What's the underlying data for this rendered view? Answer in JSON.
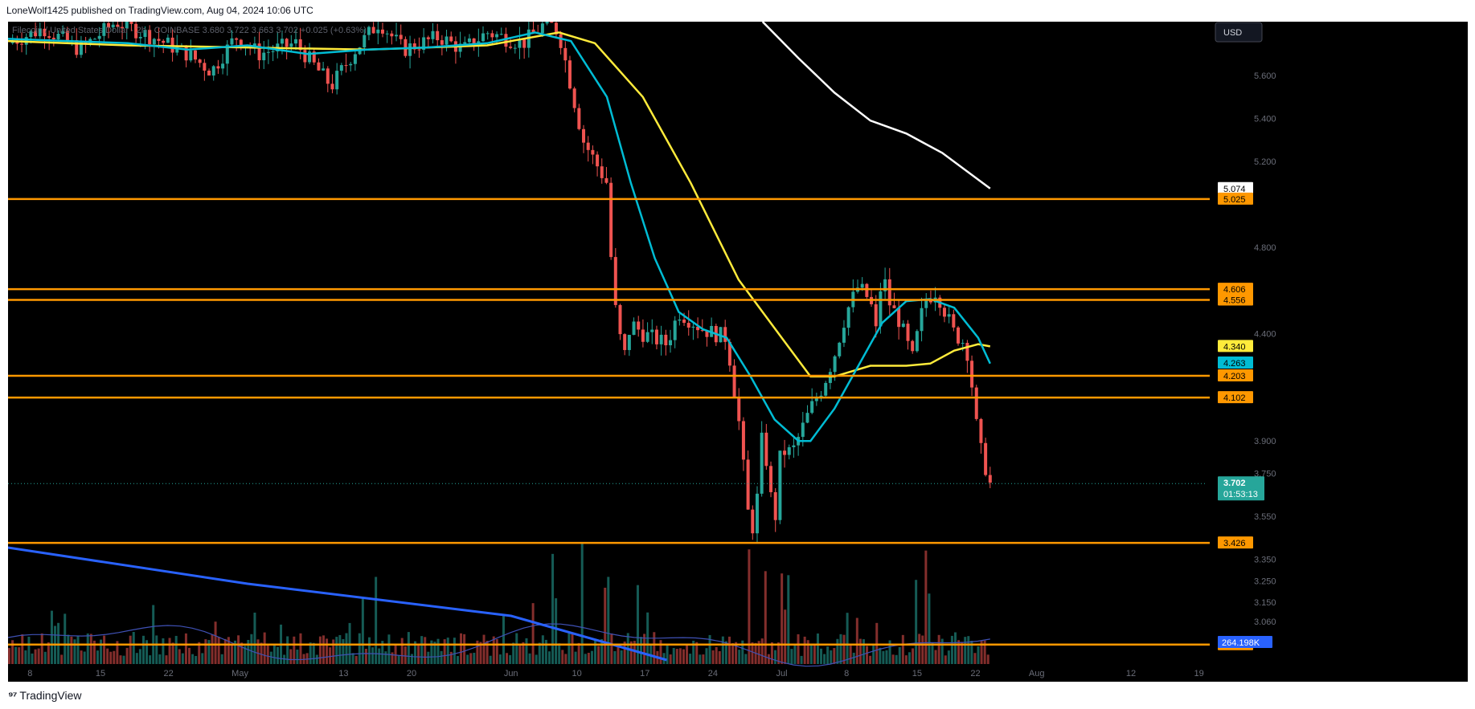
{
  "header": {
    "published": "LoneWolf1425 published on TradingView.com, Aug 04, 2024 10:06 UTC"
  },
  "footer": {
    "brand": "TradingView"
  },
  "toolbar": {
    "currency": "USD"
  },
  "colors": {
    "background": "#000000",
    "up": "#26a69a",
    "down": "#ef5350",
    "hline": "#ff9800",
    "ema_fast": "#00bcd4",
    "ema_slow": "#ffeb3b",
    "ema_long": "#ffffff",
    "vol_ma_fast": "#3f51b5",
    "vol_ma_slow": "#2962ff"
  },
  "chart_data": {
    "type": "candlestick",
    "symbol_line": {
      "name": "Filecoin / United States Dollar · 2h · COINBASE",
      "values": [
        "3.680",
        "3.722",
        "3.663",
        "3.702",
        "+0.025 (+0.63%)"
      ]
    },
    "ylim": [
      2.9,
      5.85
    ],
    "price_ticks": [
      "5.600",
      "5.400",
      "5.200",
      "4.800",
      "4.400",
      "3.900",
      "3.750",
      "3.550",
      "3.350",
      "3.250",
      "3.150",
      "3.060"
    ],
    "x_ticks": [
      "8",
      "15",
      "22",
      "May",
      "13",
      "20",
      "Jun",
      "10",
      "17",
      "24",
      "Jul",
      "8",
      "15",
      "22",
      "Aug",
      "12",
      "19"
    ],
    "horizontal_levels": [
      5.025,
      4.606,
      4.556,
      4.203,
      4.102,
      3.426,
      2.953
    ],
    "price_labels": [
      {
        "text": "5.074",
        "value": 5.074,
        "style": "white"
      },
      {
        "text": "5.025",
        "value": 5.025,
        "style": "orange"
      },
      {
        "text": "4.606",
        "value": 4.606,
        "style": "orange"
      },
      {
        "text": "4.556",
        "value": 4.556,
        "style": "orange"
      },
      {
        "text": "4.340",
        "value": 4.34,
        "style": "yellow"
      },
      {
        "text": "4.263",
        "value": 4.263,
        "style": "cyan"
      },
      {
        "text": "4.203",
        "value": 4.203,
        "style": "orange"
      },
      {
        "text": "4.102",
        "value": 4.102,
        "style": "orange"
      },
      {
        "text": "3.426",
        "value": 3.426,
        "style": "orange"
      },
      {
        "text": "2.953",
        "value": 2.953,
        "style": "orange"
      }
    ],
    "last_price": {
      "value": 3.702,
      "text": "3.702",
      "countdown": "01:53:13"
    },
    "volume_label": "264.198K",
    "price_path": [
      [
        0,
        5.75
      ],
      [
        0.03,
        5.82
      ],
      [
        0.06,
        5.72
      ],
      [
        0.09,
        5.85
      ],
      [
        0.12,
        5.78
      ],
      [
        0.15,
        5.7
      ],
      [
        0.17,
        5.62
      ],
      [
        0.19,
        5.78
      ],
      [
        0.21,
        5.7
      ],
      [
        0.24,
        5.75
      ],
      [
        0.27,
        5.55
      ],
      [
        0.29,
        5.72
      ],
      [
        0.31,
        5.85
      ],
      [
        0.33,
        5.72
      ],
      [
        0.36,
        5.78
      ],
      [
        0.38,
        5.72
      ],
      [
        0.4,
        5.8
      ],
      [
        0.43,
        5.75
      ],
      [
        0.45,
        5.85
      ],
      [
        0.46,
        5.8
      ],
      [
        0.47,
        5.55
      ],
      [
        0.48,
        5.3
      ],
      [
        0.5,
        5.1
      ],
      [
        0.505,
        4.6
      ],
      [
        0.51,
        4.4
      ],
      [
        0.515,
        4.3
      ],
      [
        0.52,
        4.45
      ],
      [
        0.53,
        4.4
      ],
      [
        0.55,
        4.35
      ],
      [
        0.56,
        4.5
      ],
      [
        0.58,
        4.42
      ],
      [
        0.6,
        4.38
      ],
      [
        0.61,
        4.0
      ],
      [
        0.62,
        3.45
      ],
      [
        0.625,
        3.6
      ],
      [
        0.63,
        3.95
      ],
      [
        0.64,
        3.5
      ],
      [
        0.645,
        3.85
      ],
      [
        0.655,
        3.85
      ],
      [
        0.67,
        4.05
      ],
      [
        0.68,
        4.15
      ],
      [
        0.69,
        4.3
      ],
      [
        0.7,
        4.5
      ],
      [
        0.71,
        4.62
      ],
      [
        0.72,
        4.55
      ],
      [
        0.725,
        4.4
      ],
      [
        0.73,
        4.7
      ],
      [
        0.735,
        4.55
      ],
      [
        0.745,
        4.45
      ],
      [
        0.755,
        4.28
      ],
      [
        0.765,
        4.55
      ],
      [
        0.775,
        4.6
      ],
      [
        0.79,
        4.4
      ],
      [
        0.8,
        4.35
      ],
      [
        0.805,
        4.15
      ],
      [
        0.81,
        3.9
      ],
      [
        0.815,
        3.8
      ],
      [
        0.82,
        3.7
      ]
    ],
    "ema_fast": [
      [
        0,
        5.77
      ],
      [
        0.05,
        5.76
      ],
      [
        0.1,
        5.75
      ],
      [
        0.15,
        5.72
      ],
      [
        0.2,
        5.74
      ],
      [
        0.25,
        5.7
      ],
      [
        0.3,
        5.72
      ],
      [
        0.35,
        5.73
      ],
      [
        0.4,
        5.75
      ],
      [
        0.44,
        5.8
      ],
      [
        0.47,
        5.76
      ],
      [
        0.5,
        5.5
      ],
      [
        0.52,
        5.1
      ],
      [
        0.54,
        4.75
      ],
      [
        0.56,
        4.5
      ],
      [
        0.58,
        4.42
      ],
      [
        0.6,
        4.38
      ],
      [
        0.62,
        4.2
      ],
      [
        0.64,
        4.0
      ],
      [
        0.66,
        3.9
      ],
      [
        0.67,
        3.9
      ],
      [
        0.69,
        4.05
      ],
      [
        0.71,
        4.25
      ],
      [
        0.73,
        4.45
      ],
      [
        0.75,
        4.55
      ],
      [
        0.77,
        4.56
      ],
      [
        0.79,
        4.52
      ],
      [
        0.81,
        4.38
      ],
      [
        0.82,
        4.26
      ]
    ],
    "ema_slow": [
      [
        0,
        5.76
      ],
      [
        0.1,
        5.74
      ],
      [
        0.2,
        5.73
      ],
      [
        0.3,
        5.72
      ],
      [
        0.4,
        5.74
      ],
      [
        0.46,
        5.8
      ],
      [
        0.49,
        5.75
      ],
      [
        0.53,
        5.5
      ],
      [
        0.57,
        5.1
      ],
      [
        0.61,
        4.65
      ],
      [
        0.65,
        4.35
      ],
      [
        0.67,
        4.2
      ],
      [
        0.69,
        4.2
      ],
      [
        0.72,
        4.25
      ],
      [
        0.75,
        4.25
      ],
      [
        0.77,
        4.26
      ],
      [
        0.79,
        4.32
      ],
      [
        0.81,
        4.35
      ],
      [
        0.82,
        4.34
      ]
    ],
    "ema_long": [
      [
        0.63,
        5.85
      ],
      [
        0.66,
        5.68
      ],
      [
        0.69,
        5.52
      ],
      [
        0.72,
        5.39
      ],
      [
        0.75,
        5.33
      ],
      [
        0.78,
        5.24
      ],
      [
        0.82,
        5.074
      ]
    ]
  }
}
